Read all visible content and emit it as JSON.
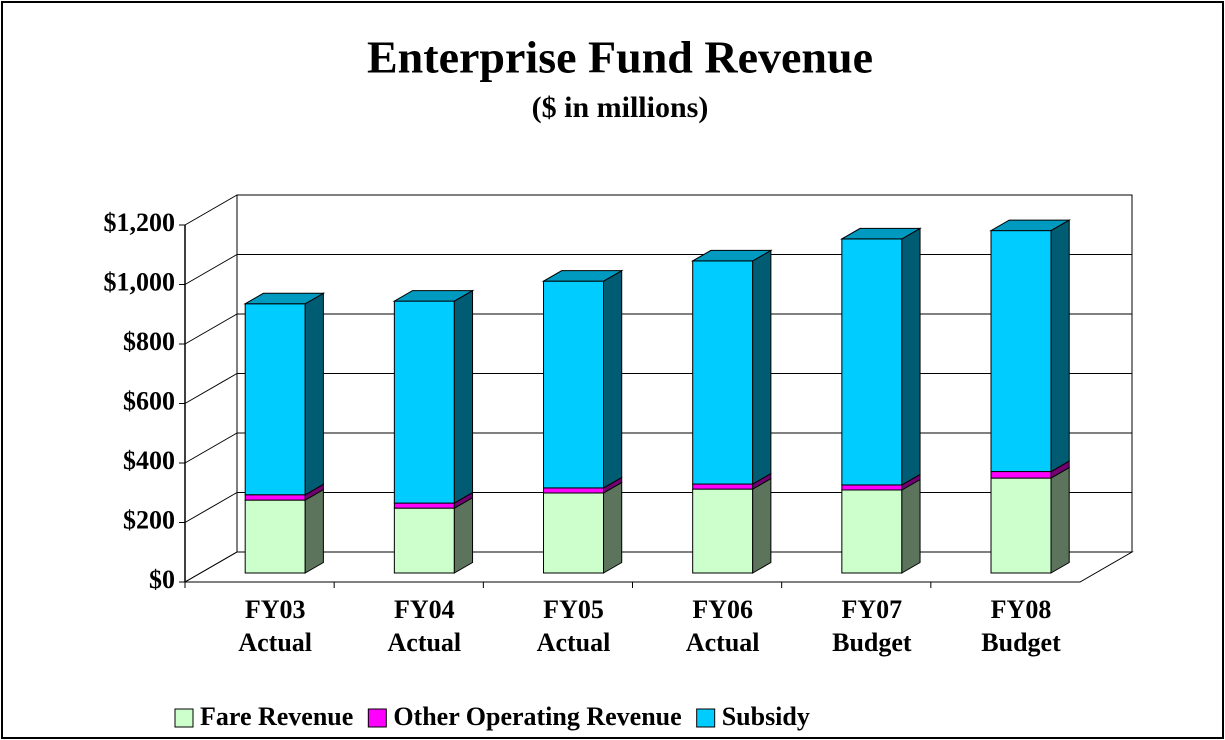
{
  "chart_data": {
    "type": "bar3d_stacked",
    "title": "Enterprise Fund Revenue",
    "subtitle": "($ in millions)",
    "categories": [
      [
        "FY03",
        "Actual"
      ],
      [
        "FY04",
        "Actual"
      ],
      [
        "FY05",
        "Actual"
      ],
      [
        "FY06",
        "Actual"
      ],
      [
        "FY07",
        "Budget"
      ],
      [
        "FY08",
        "Budget"
      ]
    ],
    "series": [
      {
        "name": "Fare Revenue",
        "color": "#ccffcc",
        "values": [
          245,
          218,
          269,
          282,
          279,
          319
        ]
      },
      {
        "name": "Other Operating Revenue",
        "color": "#ff00ff",
        "values": [
          18,
          17,
          17,
          17,
          17,
          22
        ]
      },
      {
        "name": "Subsidy",
        "color": "#00ccff",
        "values": [
          642,
          679,
          695,
          750,
          827,
          810
        ]
      }
    ],
    "ylim": [
      0,
      1200
    ],
    "yticks": [
      {
        "value": 0,
        "label": "$0"
      },
      {
        "value": 200,
        "label": "$200"
      },
      {
        "value": 400,
        "label": "$400"
      },
      {
        "value": 600,
        "label": "$600"
      },
      {
        "value": 800,
        "label": "$800"
      },
      {
        "value": 1000,
        "label": "$1,000"
      },
      {
        "value": 1200,
        "label": "$1,200"
      }
    ],
    "grid": true,
    "legend": "bottom"
  }
}
